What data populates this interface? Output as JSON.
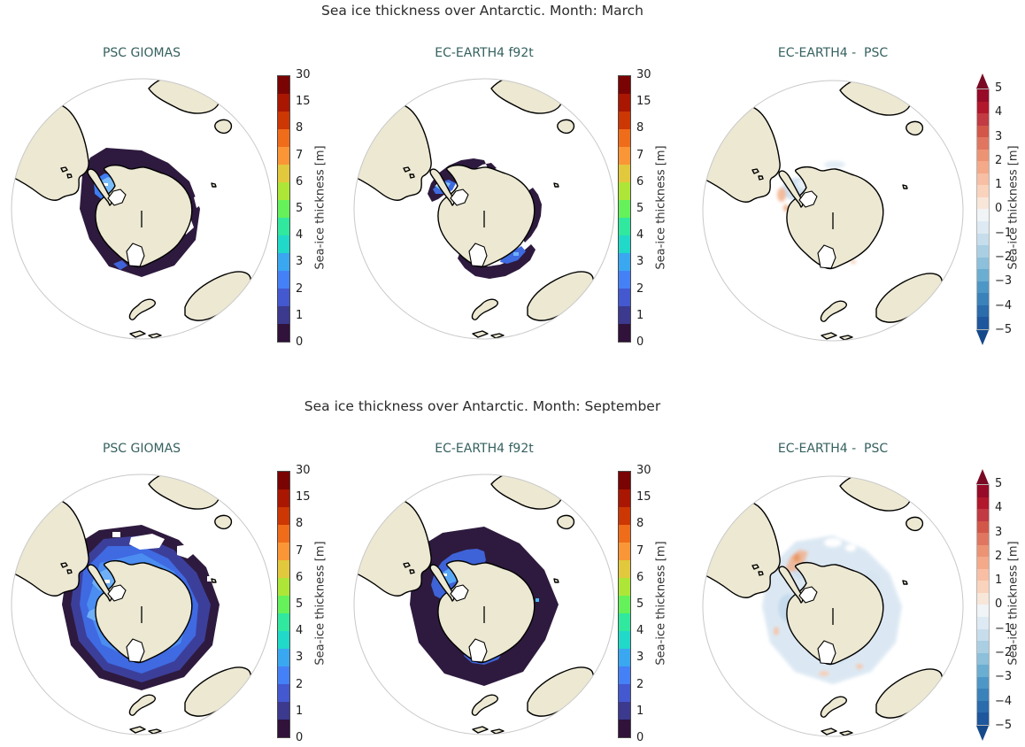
{
  "palette": {
    "land": "#ece8d2",
    "coastline": "#000000",
    "globe_edge": "#c8c8c8",
    "suptitle_color": "#2b2b2b",
    "panel_title_color": "#35615f",
    "ice_thin": "#30123b",
    "ice_medium": "#4481f7",
    "ice_thick_highlight": "#79bcf8"
  },
  "colorbar_display": {
    "thickness_ticks": [
      "30",
      "15",
      "8",
      "7",
      "6",
      "5",
      "4",
      "3",
      "2",
      "1",
      "0"
    ],
    "thickness_colors": [
      "#7a0403",
      "#a91601",
      "#cc3703",
      "#ef6c1a",
      "#fb9637",
      "#e2c83c",
      "#aee637",
      "#65f159",
      "#30e89e",
      "#21d9c9",
      "#3aa7f1",
      "#4481f7",
      "#4458d0",
      "#3b3a8e",
      "#30123b"
    ],
    "thickness_label": "Sea-ice thickness [m]",
    "diff_ticks": [
      "5",
      "4",
      "3",
      "2",
      "1",
      "0",
      "−1",
      "−2",
      "−3",
      "−4",
      "−5"
    ],
    "diff_colors": [
      "#970b28",
      "#b2182b",
      "#c23a42",
      "#d25749",
      "#e07660",
      "#ec9374",
      "#f4a989",
      "#f8bfa4",
      "#fad3bc",
      "#f8e6d9",
      "#f0f4f6",
      "#ddeaf3",
      "#c6ddec",
      "#aacfe3",
      "#8cc0db",
      "#6aaed1",
      "#4d97c6",
      "#3a83ba",
      "#2a6cac",
      "#1f579e"
    ],
    "diff_over": "#7a0a23",
    "diff_under": "#15498a",
    "diff_label": "Sea-ice thickness [m]"
  },
  "chart_data": {
    "type": "heatmap",
    "projection": "orthographic, centered on South Pole (Antarctic)",
    "variable": "Sea-ice thickness [m]",
    "rows": [
      {
        "suptitle": "Sea ice thickness over Antarctic. Month: March",
        "panels": [
          {
            "title": "PSC GIOMAS",
            "colorbar": "thickness",
            "description": "Narrow band of thin sea ice (0–1 m, dark purple) hugging the Antarctic coastline; thicker ice of 2–4 m (bright blue) concentrated in the western Weddell Sea next to the Antarctic Peninsula."
          },
          {
            "title": "EC-EARTH4 f92t",
            "colorbar": "thickness",
            "description": "Patchy thin ice (0–1 m, dark purple) in the Weddell sector, along the East Antarctic coast and in the Ross/Amundsen sector; 2–4 m ice (blue, with bright streak) against the Antarctic Peninsula."
          },
          {
            "title": "EC-EARTH4 -  PSC",
            "colorbar": "difference",
            "description": "Differences mostly near zero; weak negative values (−0.5 to −1 m, pale blue) in the Weddell Sea, tiny positive patches (orange) near the peninsula and scattered weak signals near the coast."
          }
        ]
      },
      {
        "suptitle": "Sea ice thickness over Antarctic. Month: September",
        "panels": [
          {
            "title": "PSC GIOMAS",
            "colorbar": "thickness",
            "description": "Extensive winter ice pack around the whole continent; thin ice (0–1 m, dark purple) at the outer edge, 1–3 m (blue) through the pack, thickest ice (3–5 m, light blue/white) in the western Weddell Sea."
          },
          {
            "title": "EC-EARTH4 f92t",
            "colorbar": "thickness",
            "description": "Extensive winter cover dominated by thin ice (0–1 m, dark purple); 1–3 m ice (blue with bright patches) in the Weddell and Ross sectors."
          },
          {
            "title": "EC-EARTH4 -  PSC",
            "colorbar": "difference",
            "description": "Broad weak negative differences (0 to −1 m, pale blue) across most of the ice pack; positive differences (+0.5 to +1.5 m, orange) northeast of the Antarctic Peninsula."
          }
        ]
      }
    ],
    "colorbars": {
      "thickness": {
        "label": "Sea-ice thickness [m]",
        "ticks": [
          30,
          15,
          8,
          7,
          6,
          5,
          4,
          3,
          2,
          1,
          0
        ],
        "tick_spacing": "uniform spacing, nonlinear values",
        "discrete_levels": 15
      },
      "difference": {
        "label": "Sea-ice thickness [m]",
        "ticks": [
          5,
          4,
          3,
          2,
          1,
          0,
          -1,
          -2,
          -3,
          -4,
          -5
        ],
        "extend": "both",
        "discrete_levels": 20
      }
    }
  }
}
